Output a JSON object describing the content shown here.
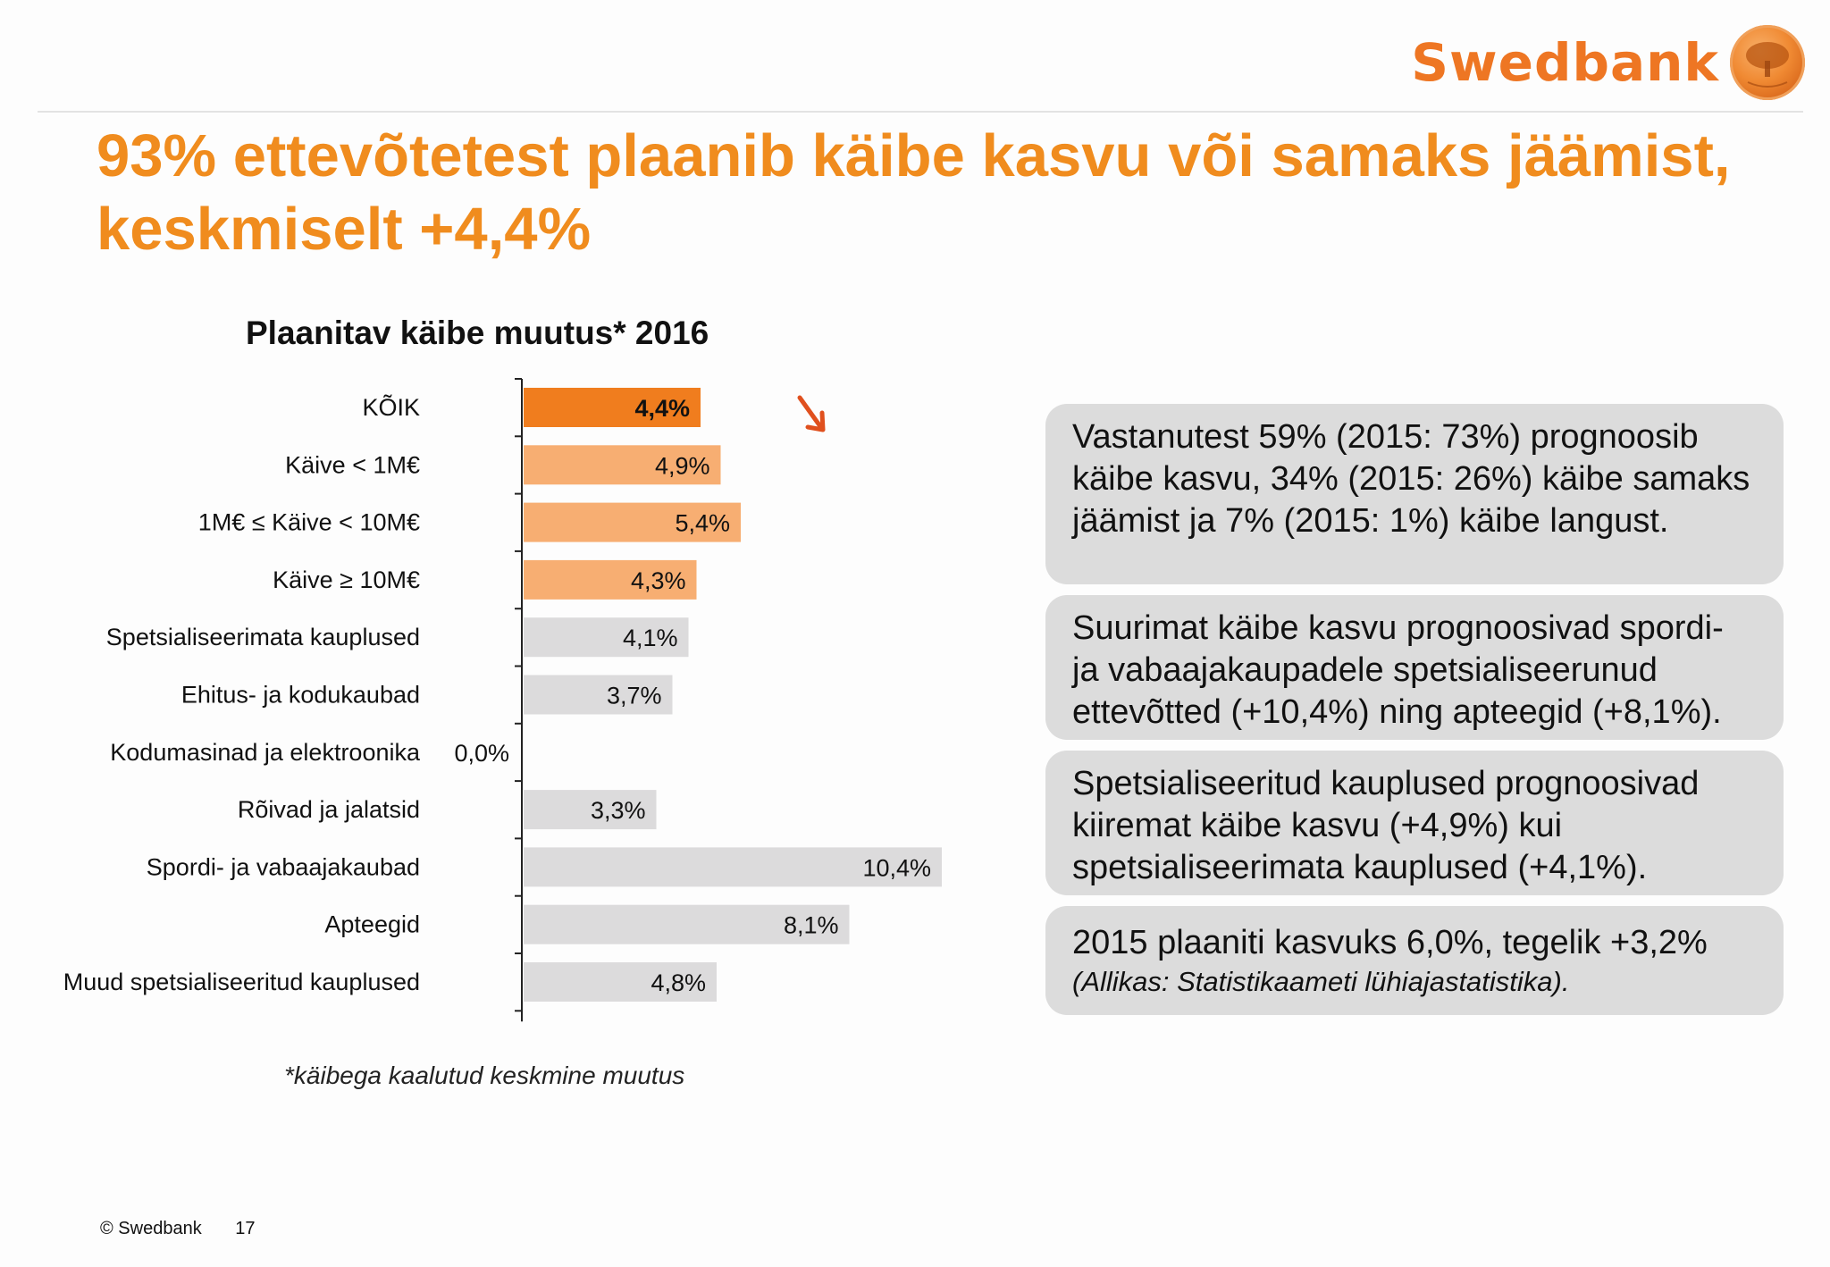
{
  "brand": {
    "name": "Swedbank"
  },
  "title": "93% ettevõtetest plaanib käibe kasvu või samaks jäämist, keskmiselt +4,4%",
  "chart_data": {
    "type": "bar",
    "orientation": "horizontal",
    "title": "Plaanitav käibe muutus* 2016",
    "categories": [
      "KÕIK",
      "Käive < 1M€",
      "1M€ ≤ Käive < 10M€",
      "Käive ≥ 10M€",
      "Spetsialiseerimata kauplused",
      "Ehitus- ja kodukaubad",
      "Kodumasinad ja elektroonika",
      "Rõivad ja jalatsid",
      "Spordi- ja vabaajakaubad",
      "Apteegid",
      "Muud spetsialiseeritud kauplused"
    ],
    "values": [
      4.4,
      4.9,
      5.4,
      4.3,
      4.1,
      3.7,
      0.0,
      3.3,
      10.4,
      8.1,
      4.8
    ],
    "labels": [
      "4,4%",
      "4,9%",
      "5,4%",
      "4,3%",
      "4,1%",
      "3,7%",
      "0,0%",
      "3,3%",
      "10,4%",
      "8,1%",
      "4,8%"
    ],
    "colors": [
      "#f07d1e",
      "#f7ae72",
      "#f7ae72",
      "#f7ae72",
      "#dcdbdc",
      "#dcdbdc",
      "#dcdbdc",
      "#dcdbdc",
      "#dcdbdc",
      "#dcdbdc",
      "#dcdbdc"
    ],
    "xlim": [
      0,
      10.4
    ],
    "footnote": "*käibega kaalutud keskmine muutus"
  },
  "boxes": [
    {
      "text": "Vastanutest 59% (2015: 73%) prognoosib käibe kasvu, 34% (2015: 26%) käibe samaks jäämist ja 7% (2015: 1%) käibe langust."
    },
    {
      "text": "Suurimat käibe kasvu prognoosivad spordi- ja vabaajakaupadele spetsialiseerunud ettevõtted (+10,4%) ning apteegid (+8,1%)."
    },
    {
      "text": "Spetsialiseeritud kauplused prognoosivad kiiremat käibe kasvu (+4,9%) kui spetsialiseerimata kauplused (+4,1%)."
    },
    {
      "text": "2015 plaaniti kasvuks 6,0%, tegelik +3,2%",
      "sub": "(Allikas: Statistikaameti lühiajastatistika)."
    }
  ],
  "footer": {
    "copyright": "© Swedbank",
    "page": "17"
  },
  "colors": {
    "accent": "#f08c1e",
    "arrow": "#e0501e",
    "box": "#dcdcdc"
  }
}
